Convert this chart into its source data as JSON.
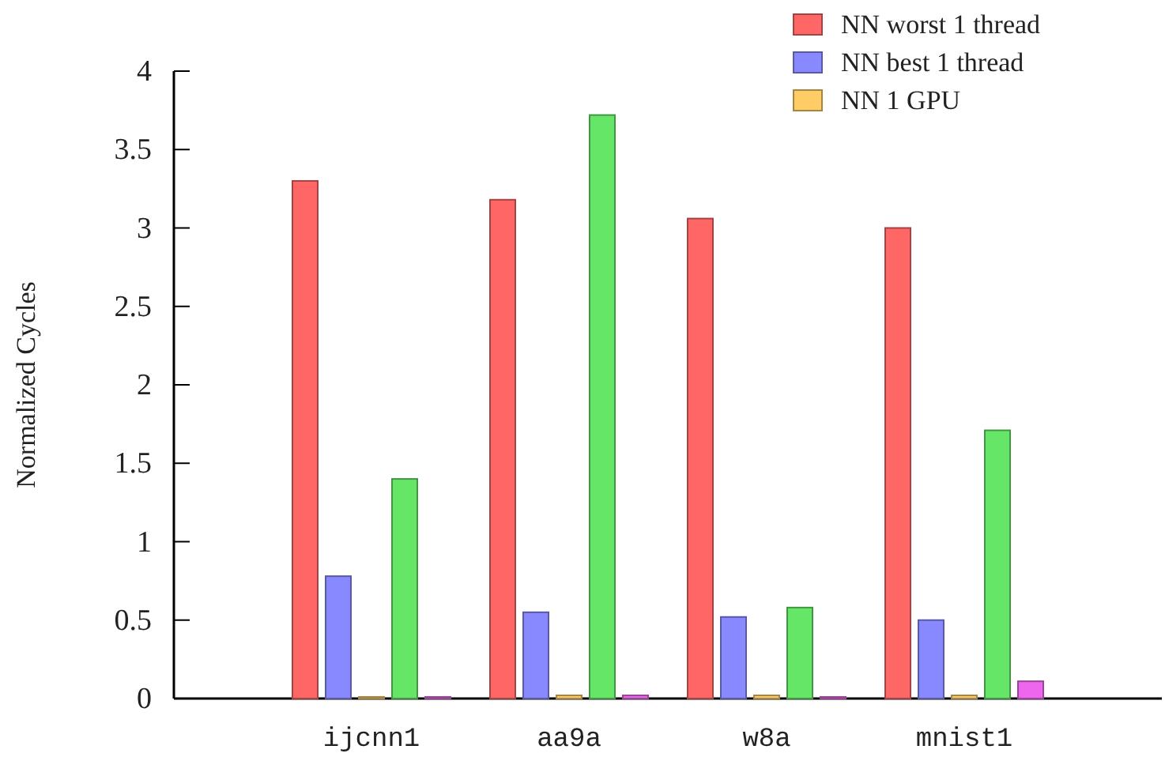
{
  "chart_data": {
    "type": "bar",
    "ylabel": "Normalized Cycles",
    "categories": [
      "ijcnn1",
      "aa9a",
      "w8a",
      "mnist1"
    ],
    "series": [
      {
        "name": "NN worst 1 thread",
        "color": "#ff6666",
        "values": [
          3.3,
          3.18,
          3.06,
          3.0
        ]
      },
      {
        "name": "NN best 1 thread",
        "color": "#8888ff",
        "values": [
          0.78,
          0.55,
          0.52,
          0.5
        ]
      },
      {
        "name": "NN 1 GPU",
        "color": "#ffcc66",
        "values": [
          0.01,
          0.02,
          0.02,
          0.02
        ]
      },
      {
        "color": "#66e666",
        "values": [
          1.4,
          3.72,
          0.58,
          1.71
        ]
      },
      {
        "color": "#ee66ee",
        "values": [
          0.01,
          0.02,
          0.01,
          0.11
        ]
      }
    ],
    "ylim": [
      0,
      4
    ],
    "yticks": [
      0,
      0.5,
      1,
      1.5,
      2,
      2.5,
      3,
      3.5,
      4
    ],
    "grid": false,
    "legend": "top right"
  }
}
